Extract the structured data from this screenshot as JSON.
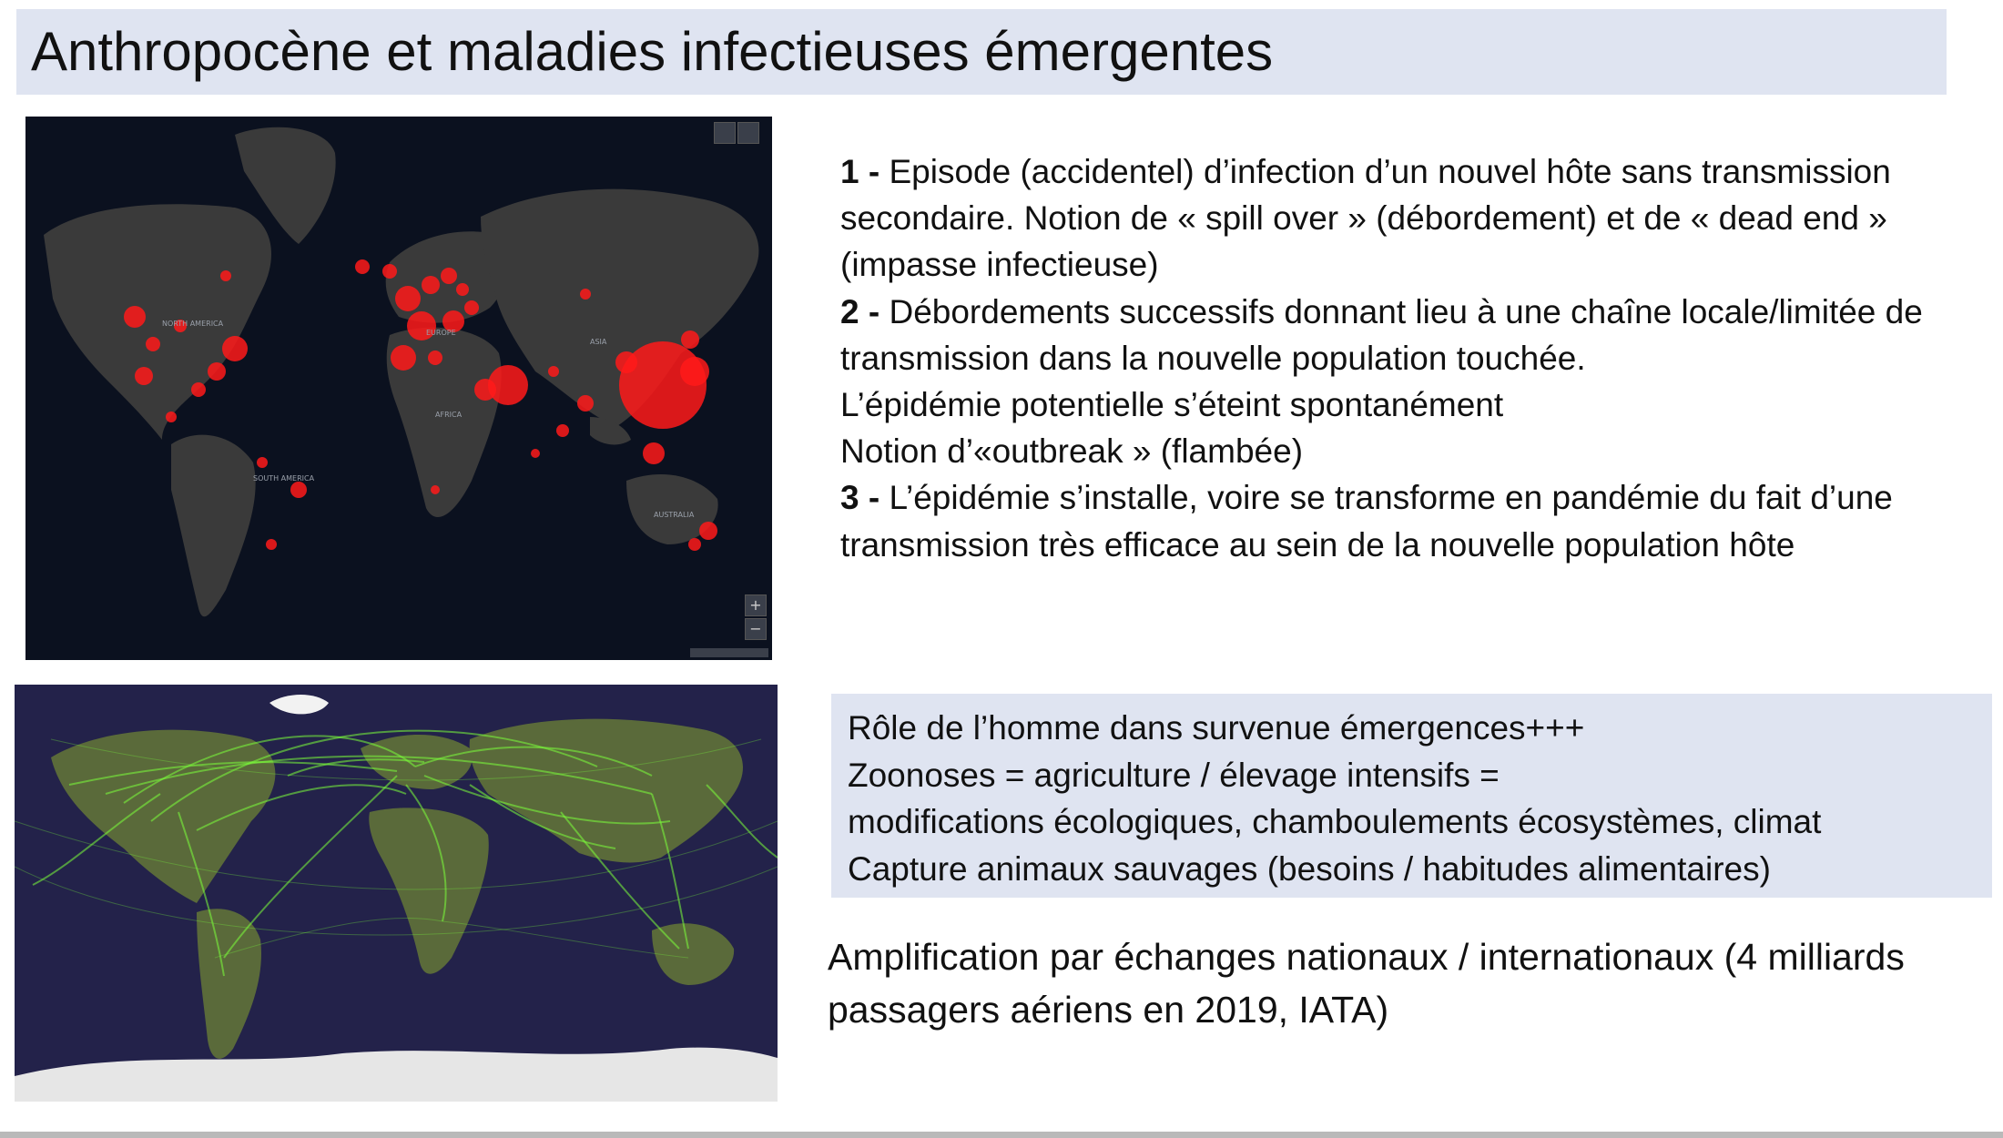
{
  "slide": {
    "title": "Anthropocène et maladies infectieuses émergentes"
  },
  "map_covid": {
    "description_icon": "world-map-dark-icon",
    "continent_labels": [
      "NORTH AMERICA",
      "EUROPE",
      "ASIA",
      "AFRICA",
      "SOUTH AMERICA",
      "AUSTRALIA"
    ],
    "colors": {
      "background": "#0b111f",
      "land": "#3a3a3a",
      "hotspot": "#ff1a1a"
    },
    "zoom_in": "+",
    "zoom_out": "−"
  },
  "map_flights": {
    "description_icon": "flight-routes-map-icon",
    "colors": {
      "ocean": "#23224a",
      "route": "#7cff3a"
    }
  },
  "steps": [
    {
      "number": "1 -",
      "text": "Episode (accidentel) d’infection d’un nouvel hôte sans transmission secondaire. Notion de « spill over » (débordement) et de « dead end » (impasse infectieuse)"
    },
    {
      "number": "2 -",
      "text": "Débordements successifs donnant lieu à une chaîne locale/limitée de transmission dans la nouvelle population touchée."
    },
    {
      "number": "",
      "text": "L’épidémie potentielle s’éteint spontanément"
    },
    {
      "number": "",
      "text": "Notion d’«outbreak » (flambée)"
    },
    {
      "number": "3 -",
      "text": "L’épidémie s’installe, voire se transforme en pandémie du fait d’une transmission très efficace au sein de la nouvelle population hôte"
    }
  ],
  "role_box": {
    "lines": [
      "Rôle de l’homme dans survenue émergences+++",
      "Zoonoses = agriculture / élevage intensifs =",
      "modifications écologiques, chamboulements écosystèmes, climat",
      "Capture animaux sauvages (besoins / habitudes alimentaires)"
    ],
    "background": "#dfe4f1"
  },
  "amplification": "Amplification par échanges nationaux / internationaux (4 milliards passagers aériens en 2019, IATA)"
}
